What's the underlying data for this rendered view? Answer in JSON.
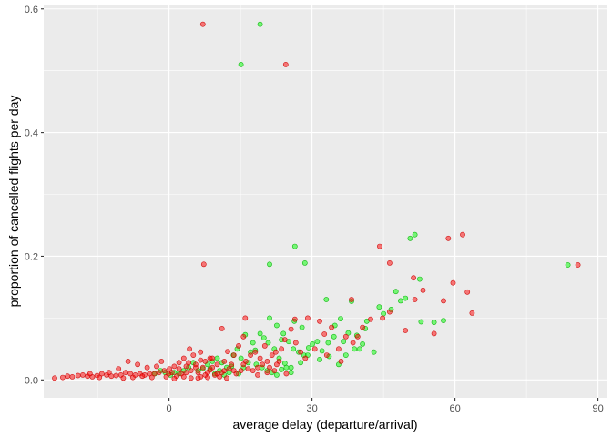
{
  "chart_data": {
    "type": "scatter",
    "xlabel": "average delay (departure/arrival)",
    "ylabel": "proportion of cancelled flights per day",
    "x_ticks": [
      0,
      30,
      60,
      90
    ],
    "x_tick_labels": [
      "0",
      "30",
      "60",
      "90"
    ],
    "y_ticks": [
      0.0,
      0.2,
      0.4,
      0.6
    ],
    "y_tick_labels": [
      "0.0",
      "0.2",
      "0.4",
      "0.6"
    ],
    "xlim": [
      -26.3,
      91.8
    ],
    "ylim": [
      -0.029,
      0.607
    ],
    "grid": true,
    "legend": "none",
    "panel_color": "#ebebeb",
    "grid_color": "#ffffff",
    "series": [
      {
        "color": "#00ff00",
        "points": [
          [
            19.1,
            0.575
          ],
          [
            15.1,
            0.51
          ],
          [
            26.4,
            0.216
          ],
          [
            21.1,
            0.187
          ],
          [
            28.5,
            0.189
          ],
          [
            50.6,
            0.229
          ],
          [
            51.6,
            0.235
          ],
          [
            83.7,
            0.186
          ],
          [
            52.6,
            0.163
          ],
          [
            52.9,
            0.094
          ],
          [
            47.6,
            0.143
          ],
          [
            48.6,
            0.128
          ],
          [
            49.6,
            0.132
          ],
          [
            33.0,
            0.13
          ],
          [
            38.3,
            0.127
          ],
          [
            44.1,
            0.118
          ],
          [
            46.6,
            0.114
          ],
          [
            45.0,
            0.107
          ],
          [
            55.6,
            0.093
          ],
          [
            57.6,
            0.096
          ],
          [
            41.5,
            0.095
          ],
          [
            41.2,
            0.083
          ],
          [
            36.0,
            0.099
          ],
          [
            34.8,
            0.088
          ],
          [
            37.6,
            0.076
          ],
          [
            39.4,
            0.072
          ],
          [
            36.6,
            0.062
          ],
          [
            40.0,
            0.05
          ],
          [
            43.0,
            0.045
          ],
          [
            38.9,
            0.05
          ],
          [
            33.4,
            0.06
          ],
          [
            31.1,
            0.062
          ],
          [
            30.1,
            0.058
          ],
          [
            29.3,
            0.052
          ],
          [
            32.1,
            0.047
          ],
          [
            33.6,
            0.038
          ],
          [
            31.6,
            0.033
          ],
          [
            28.3,
            0.04
          ],
          [
            27.2,
            0.045
          ],
          [
            27.6,
            0.028
          ],
          [
            25.6,
            0.02
          ],
          [
            24.3,
            0.027
          ],
          [
            23.1,
            0.035
          ],
          [
            22.1,
            0.05
          ],
          [
            20.8,
            0.06
          ],
          [
            21.1,
            0.1
          ],
          [
            22.6,
            0.088
          ],
          [
            24.0,
            0.075
          ],
          [
            25.1,
            0.062
          ],
          [
            27.9,
            0.085
          ],
          [
            26.3,
            0.095
          ],
          [
            19.1,
            0.075
          ],
          [
            17.6,
            0.06
          ],
          [
            16.0,
            0.073
          ],
          [
            14.3,
            0.05
          ],
          [
            13.5,
            0.04
          ],
          [
            15.1,
            0.035
          ],
          [
            16.6,
            0.028
          ],
          [
            18.3,
            0.025
          ],
          [
            19.5,
            0.02
          ],
          [
            20.6,
            0.015
          ],
          [
            21.6,
            0.012
          ],
          [
            22.6,
            0.008
          ],
          [
            23.6,
            0.017
          ],
          [
            24.6,
            0.02
          ],
          [
            25.6,
            0.012
          ],
          [
            12.1,
            0.02
          ],
          [
            11.1,
            0.028
          ],
          [
            10.1,
            0.035
          ],
          [
            9.1,
            0.03
          ],
          [
            8.1,
            0.025
          ],
          [
            7.1,
            0.018
          ],
          [
            6.1,
            0.015
          ],
          [
            5.1,
            0.028
          ],
          [
            4.1,
            0.02
          ],
          [
            3.1,
            0.015
          ],
          [
            2.1,
            0.01
          ],
          [
            1.1,
            0.012
          ],
          [
            0.3,
            0.008
          ],
          [
            -0.8,
            0.012
          ],
          [
            -1.8,
            0.015
          ],
          [
            -3.0,
            0.01
          ],
          [
            13.1,
            0.022
          ],
          [
            17.1,
            0.045
          ],
          [
            18.1,
            0.048
          ],
          [
            29.1,
            0.04
          ],
          [
            26.1,
            0.05
          ],
          [
            34.6,
            0.07
          ],
          [
            37.1,
            0.04
          ],
          [
            35.6,
            0.025
          ],
          [
            40.6,
            0.058
          ],
          [
            23.6,
            0.065
          ],
          [
            19.9,
            0.068
          ],
          [
            15.6,
            0.02
          ],
          [
            14.6,
            0.01
          ],
          [
            11.6,
            0.008
          ],
          [
            10.6,
            0.015
          ],
          [
            9.6,
            0.01
          ],
          [
            8.6,
            0.018
          ],
          [
            12.6,
            0.012
          ]
        ]
      },
      {
        "color": "#ff0000",
        "points": [
          [
            7.1,
            0.575
          ],
          [
            24.5,
            0.51
          ],
          [
            7.3,
            0.187
          ],
          [
            44.2,
            0.216
          ],
          [
            61.6,
            0.235
          ],
          [
            58.6,
            0.229
          ],
          [
            85.8,
            0.186
          ],
          [
            46.3,
            0.189
          ],
          [
            51.3,
            0.165
          ],
          [
            59.6,
            0.157
          ],
          [
            53.3,
            0.145
          ],
          [
            62.6,
            0.142
          ],
          [
            57.6,
            0.128
          ],
          [
            63.6,
            0.108
          ],
          [
            38.3,
            0.13
          ],
          [
            51.6,
            0.13
          ],
          [
            44.8,
            0.1
          ],
          [
            46.3,
            0.11
          ],
          [
            49.6,
            0.08
          ],
          [
            55.6,
            0.075
          ],
          [
            42.3,
            0.098
          ],
          [
            40.6,
            0.085
          ],
          [
            39.6,
            0.07
          ],
          [
            38.6,
            0.06
          ],
          [
            37.1,
            0.07
          ],
          [
            34.1,
            0.085
          ],
          [
            32.6,
            0.074
          ],
          [
            31.6,
            0.095
          ],
          [
            29.1,
            0.1
          ],
          [
            26.4,
            0.098
          ],
          [
            25.6,
            0.082
          ],
          [
            24.3,
            0.065
          ],
          [
            23.6,
            0.05
          ],
          [
            22.4,
            0.045
          ],
          [
            21.6,
            0.04
          ],
          [
            20.6,
            0.03
          ],
          [
            19.6,
            0.025
          ],
          [
            18.6,
            0.02
          ],
          [
            17.6,
            0.015
          ],
          [
            16.6,
            0.018
          ],
          [
            15.6,
            0.07
          ],
          [
            16.0,
            0.1
          ],
          [
            14.6,
            0.055
          ],
          [
            13.6,
            0.04
          ],
          [
            11.1,
            0.083
          ],
          [
            12.3,
            0.046
          ],
          [
            8.6,
            0.035
          ],
          [
            6.6,
            0.032
          ],
          [
            4.3,
            0.05
          ],
          [
            3.1,
            0.035
          ],
          [
            2.1,
            0.028
          ],
          [
            1.1,
            0.022
          ],
          [
            0.1,
            0.018
          ],
          [
            -1.0,
            0.015
          ],
          [
            -2.1,
            0.012
          ],
          [
            -3.1,
            0.01
          ],
          [
            -4.1,
            0.01
          ],
          [
            -5.1,
            0.008
          ],
          [
            -6.1,
            0.01
          ],
          [
            -7.1,
            0.008
          ],
          [
            -8.1,
            0.01
          ],
          [
            -9.1,
            0.012
          ],
          [
            -10.1,
            0.008
          ],
          [
            -11.1,
            0.007
          ],
          [
            -12.1,
            0.006
          ],
          [
            -13.1,
            0.008
          ],
          [
            -14.1,
            0.01
          ],
          [
            -15.1,
            0.007
          ],
          [
            -16.1,
            0.005
          ],
          [
            -17.1,
            0.006
          ],
          [
            -18.1,
            0.008
          ],
          [
            -19.1,
            0.007
          ],
          [
            -20.3,
            0.005
          ],
          [
            -21.3,
            0.006
          ],
          [
            -22.3,
            0.004
          ],
          [
            -24.0,
            0.003
          ],
          [
            -2.6,
            0.022
          ],
          [
            -4.6,
            0.02
          ],
          [
            -6.6,
            0.025
          ],
          [
            -8.6,
            0.03
          ],
          [
            -10.6,
            0.018
          ],
          [
            -1.6,
            0.03
          ],
          [
            -0.6,
            0.005
          ],
          [
            1.6,
            0.006
          ],
          [
            2.6,
            0.01
          ],
          [
            3.6,
            0.012
          ],
          [
            4.6,
            0.015
          ],
          [
            5.6,
            0.02
          ],
          [
            6.6,
            0.005
          ],
          [
            7.6,
            0.008
          ],
          [
            8.1,
            0.012
          ],
          [
            9.1,
            0.02
          ],
          [
            10.1,
            0.025
          ],
          [
            11.6,
            0.03
          ],
          [
            12.6,
            0.018
          ],
          [
            13.1,
            0.025
          ],
          [
            14.1,
            0.01
          ],
          [
            15.1,
            0.015
          ],
          [
            16.1,
            0.03
          ],
          [
            17.1,
            0.04
          ],
          [
            18.1,
            0.045
          ],
          [
            19.1,
            0.035
          ],
          [
            20.1,
            0.055
          ],
          [
            21.1,
            0.02
          ],
          [
            22.1,
            0.015
          ],
          [
            23.1,
            0.03
          ],
          [
            26.6,
            0.06
          ],
          [
            27.6,
            0.045
          ],
          [
            28.6,
            0.035
          ],
          [
            30.6,
            0.05
          ],
          [
            33.1,
            0.04
          ],
          [
            35.6,
            0.05
          ],
          [
            36.1,
            0.03
          ],
          [
            5.1,
            0.04
          ],
          [
            4.1,
            0.028
          ],
          [
            3.6,
            0.022
          ],
          [
            6.1,
            0.012
          ],
          [
            7.1,
            0.02
          ],
          [
            8.6,
            0.016
          ],
          [
            9.6,
            0.008
          ],
          [
            10.6,
            0.005
          ],
          [
            11.1,
            0.012
          ],
          [
            12.1,
            0.003
          ],
          [
            0.6,
            0.012
          ],
          [
            -0.1,
            0.01
          ],
          [
            1.1,
            0.002
          ],
          [
            -3.6,
            0.004
          ],
          [
            -5.6,
            0.006
          ],
          [
            -7.6,
            0.004
          ],
          [
            -9.6,
            0.003
          ],
          [
            -12.6,
            0.012
          ],
          [
            -14.6,
            0.004
          ],
          [
            -16.6,
            0.01
          ],
          [
            2.1,
            0.018
          ],
          [
            5.6,
            0.025
          ],
          [
            6.6,
            0.045
          ],
          [
            7.6,
            0.03
          ],
          [
            9.1,
            0.035
          ],
          [
            13.6,
            0.015
          ],
          [
            15.6,
            0.025
          ],
          [
            18.6,
            0.008
          ],
          [
            20.6,
            0.012
          ],
          [
            22.6,
            0.025
          ],
          [
            24.6,
            0.01
          ],
          [
            3.1,
            0.005
          ],
          [
            4.6,
            0.003
          ],
          [
            6.1,
            0.003
          ],
          [
            8.1,
            0.004
          ],
          [
            10.1,
            0.01
          ],
          [
            11.6,
            0.015
          ]
        ]
      }
    ]
  }
}
